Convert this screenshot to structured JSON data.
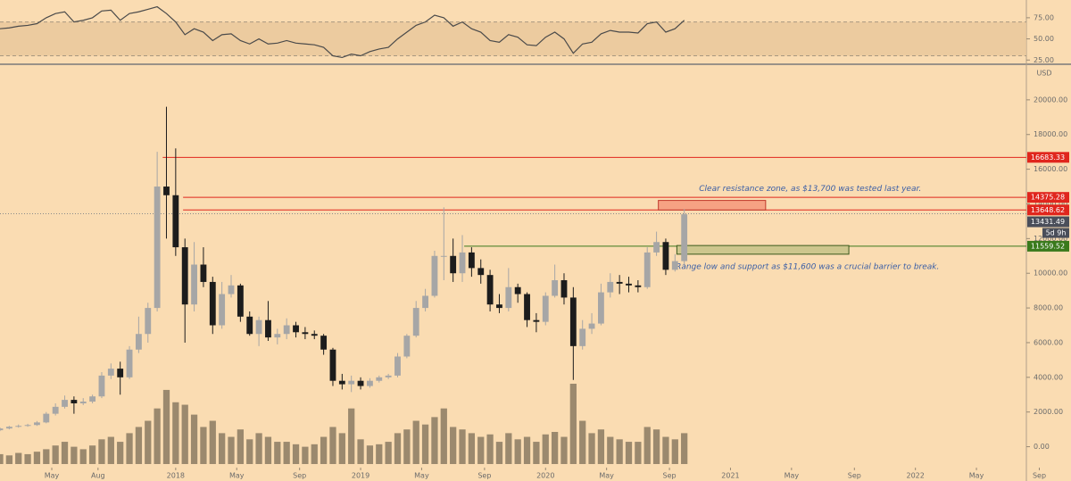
{
  "chart_data": [
    {
      "type": "candlestick",
      "x": [
        2017.05,
        2017.1,
        2017.15,
        2017.2,
        2017.25,
        2017.3,
        2017.35,
        2017.4,
        2017.45,
        2017.5,
        2017.55,
        2017.6,
        2017.65,
        2017.7,
        2017.75,
        2017.8,
        2017.85,
        2017.9,
        2017.95,
        2018.0,
        2018.05,
        2018.1,
        2018.15,
        2018.2,
        2018.25,
        2018.3,
        2018.35,
        2018.4,
        2018.45,
        2018.5,
        2018.55,
        2018.6,
        2018.65,
        2018.7,
        2018.75,
        2018.8,
        2018.85,
        2018.9,
        2018.95,
        2019.0,
        2019.05,
        2019.1,
        2019.15,
        2019.2,
        2019.25,
        2019.3,
        2019.35,
        2019.4,
        2019.45,
        2019.5,
        2019.55,
        2019.6,
        2019.65,
        2019.7,
        2019.75,
        2019.8,
        2019.85,
        2019.9,
        2019.95,
        2020.0,
        2020.05,
        2020.1,
        2020.15,
        2020.2,
        2020.25,
        2020.3,
        2020.35,
        2020.4,
        2020.45,
        2020.5,
        2020.55,
        2020.6,
        2020.65,
        2020.7,
        2020.75
      ],
      "open": [
        950,
        1050,
        1150,
        1200,
        1250,
        1400,
        1900,
        2300,
        2700,
        2500,
        2600,
        2900,
        4100,
        4500,
        4000,
        5600,
        6500,
        8000,
        15000,
        14500,
        11500,
        8200,
        10500,
        9500,
        7000,
        8800,
        9300,
        7500,
        6500,
        7300,
        6300,
        6500,
        7000,
        6600,
        6500,
        6400,
        5600,
        3800,
        3600,
        3800,
        3500,
        3800,
        4000,
        4100,
        5200,
        6400,
        8000,
        8700,
        11000,
        11000,
        10000,
        11200,
        10300,
        9900,
        8200,
        8000,
        9200,
        8800,
        7300,
        7200,
        8700,
        9600,
        8600,
        5800,
        6800,
        7100,
        8900,
        9500,
        9400,
        9300,
        9200,
        11200,
        11800,
        10200,
        10700
      ],
      "high": [
        1100,
        1200,
        1280,
        1320,
        1480,
        2000,
        2500,
        2950,
        2900,
        2800,
        3000,
        4300,
        4800,
        4900,
        5800,
        7500,
        8300,
        17000,
        19600,
        17200,
        12000,
        11800,
        11500,
        9800,
        9500,
        9900,
        9400,
        7800,
        7500,
        8400,
        6800,
        7400,
        7200,
        6900,
        6700,
        6500,
        5700,
        4200,
        4100,
        4000,
        3950,
        4100,
        4200,
        5400,
        6500,
        8400,
        9100,
        11300,
        13800,
        12000,
        12200,
        11500,
        10800,
        10200,
        8800,
        10300,
        9400,
        8900,
        7700,
        8900,
        10500,
        10000,
        9200,
        7300,
        7700,
        9400,
        10000,
        9900,
        9800,
        9600,
        11500,
        12400,
        12000,
        11100,
        13700
      ],
      "low": [
        900,
        1000,
        1100,
        1150,
        1200,
        1350,
        1800,
        2200,
        1900,
        2400,
        2500,
        2800,
        3900,
        3000,
        3900,
        5400,
        6000,
        7800,
        12000,
        11000,
        6000,
        7800,
        9200,
        6500,
        6800,
        8600,
        7200,
        6400,
        5800,
        6100,
        5900,
        6200,
        6300,
        6200,
        6200,
        5300,
        3500,
        3300,
        3150,
        3300,
        3400,
        3700,
        3900,
        4000,
        5100,
        6300,
        7800,
        8600,
        9600,
        9500,
        9500,
        9800,
        9400,
        7800,
        7700,
        7800,
        8300,
        6900,
        6600,
        7000,
        8600,
        8200,
        3850,
        5600,
        6500,
        7000,
        8600,
        8800,
        8900,
        8900,
        9100,
        11000,
        9900,
        10100,
        10500
      ],
      "close": [
        1050,
        1150,
        1200,
        1250,
        1400,
        1900,
        2300,
        2700,
        2500,
        2600,
        2900,
        4100,
        4500,
        4000,
        5600,
        6500,
        8000,
        15000,
        14500,
        11500,
        8200,
        10500,
        9500,
        7000,
        8800,
        9300,
        7500,
        6500,
        7300,
        6300,
        6500,
        7000,
        6600,
        6500,
        6400,
        5600,
        3800,
        3600,
        3800,
        3500,
        3800,
        4000,
        4100,
        5200,
        6400,
        8000,
        8700,
        11000,
        11000,
        10000,
        11200,
        10300,
        9900,
        8200,
        8000,
        9200,
        8800,
        7300,
        7200,
        8700,
        9600,
        8600,
        5800,
        6800,
        7100,
        8900,
        9500,
        9400,
        9300,
        9200,
        11200,
        11800,
        10200,
        10700,
        13400
      ],
      "volume": [
        8,
        7,
        9,
        8,
        10,
        12,
        15,
        18,
        14,
        12,
        15,
        20,
        22,
        18,
        25,
        30,
        35,
        45,
        60,
        50,
        48,
        40,
        30,
        35,
        25,
        22,
        28,
        20,
        25,
        22,
        18,
        18,
        16,
        14,
        16,
        22,
        30,
        25,
        45,
        20,
        15,
        16,
        18,
        25,
        28,
        35,
        32,
        38,
        45,
        30,
        28,
        25,
        22,
        24,
        18,
        25,
        20,
        22,
        18,
        24,
        26,
        22,
        65,
        35,
        25,
        28,
        22,
        20,
        18,
        18,
        30,
        28,
        22,
        20,
        25
      ],
      "up_color": "#a6a6a6",
      "down_color": "#1c1c1c",
      "volume_color": "#8a7a62",
      "ylim": [
        -1000,
        22000
      ],
      "yticks": [
        {
          "value": 0,
          "label": "0.00"
        },
        {
          "value": 2000,
          "label": "2000.00"
        },
        {
          "value": 4000,
          "label": "4000.00"
        },
        {
          "value": 6000,
          "label": "6000.00"
        },
        {
          "value": 8000,
          "label": "8000.00"
        },
        {
          "value": 10000,
          "label": "10000.00"
        },
        {
          "value": 12000,
          "label": "12000.00"
        },
        {
          "value": 14000,
          "label": "14000.00"
        },
        {
          "value": 16000,
          "label": "16000.00"
        },
        {
          "value": 18000,
          "label": "18000.00"
        },
        {
          "value": 20000,
          "label": "20000.00"
        }
      ],
      "xlim": [
        2017.05,
        2022.6
      ],
      "xticks": [
        {
          "value": 2017.33,
          "label": "May"
        },
        {
          "value": 2017.58,
          "label": "Aug"
        },
        2018,
        {
          "value": 2018.33,
          "label": "May"
        },
        {
          "value": 2018.67,
          "label": "Sep"
        },
        2019,
        {
          "value": 2019.33,
          "label": "May"
        },
        {
          "value": 2019.67,
          "label": "Sep"
        },
        2020,
        {
          "value": 2020.33,
          "label": "May"
        },
        {
          "value": 2020.67,
          "label": "Sep"
        },
        2021,
        {
          "value": 2021.33,
          "label": "May"
        },
        {
          "value": 2021.67,
          "label": "Sep"
        },
        2022,
        {
          "value": 2022.33,
          "label": "May"
        },
        {
          "value": 2022.67,
          "label": "Sep"
        }
      ],
      "axis_unit": "USD",
      "levels": [
        {
          "value": 16683.33,
          "from": 2017.93,
          "color": "#e0261d"
        },
        {
          "value": 14375.28,
          "from": 2018.04,
          "color": "#e0261d"
        },
        {
          "value": 13648.62,
          "from": 2018.04,
          "color": "#e0261d"
        },
        {
          "value": 11559.52,
          "from": 2019.56,
          "color": "#3a7a1c"
        }
      ],
      "last_price": 13431.49,
      "last_price_color": "#4a4e5a",
      "countdown": "5d 9h",
      "zones": [
        {
          "x": [
            2020.61,
            2021.19
          ],
          "y": [
            13650,
            14200
          ],
          "color": "#f6a283",
          "border": "#c0392b",
          "note": "Clear resistance zone, as $13,700 was tested last year."
        },
        {
          "x": [
            2020.71,
            2021.64
          ],
          "y": [
            11100,
            11600
          ],
          "color": "#cdc68d",
          "border": "#3a5a1c",
          "note": "Range low and support as $11,600 was a crucial barrier to break."
        }
      ]
    },
    {
      "type": "line",
      "values": [
        62,
        63,
        65,
        66,
        68,
        75,
        80,
        82,
        70,
        72,
        75,
        83,
        84,
        72,
        80,
        82,
        85,
        88,
        80,
        70,
        55,
        62,
        58,
        48,
        55,
        56,
        48,
        44,
        50,
        44,
        45,
        48,
        45,
        44,
        43,
        40,
        30,
        28,
        32,
        30,
        35,
        38,
        40,
        50,
        58,
        66,
        70,
        78,
        75,
        65,
        70,
        62,
        58,
        48,
        46,
        55,
        52,
        43,
        42,
        52,
        58,
        50,
        33,
        44,
        46,
        56,
        60,
        58,
        58,
        57,
        68,
        70,
        58,
        62,
        72
      ],
      "color": "#4a4a4a",
      "band": [
        30,
        70
      ],
      "band_color": "#e8c79a",
      "ylim": [
        20,
        96
      ],
      "yticks": [
        {
          "value": 25,
          "label": "25.00"
        },
        {
          "value": 50,
          "label": "50.00"
        },
        {
          "value": 75,
          "label": "75.00"
        }
      ]
    }
  ]
}
